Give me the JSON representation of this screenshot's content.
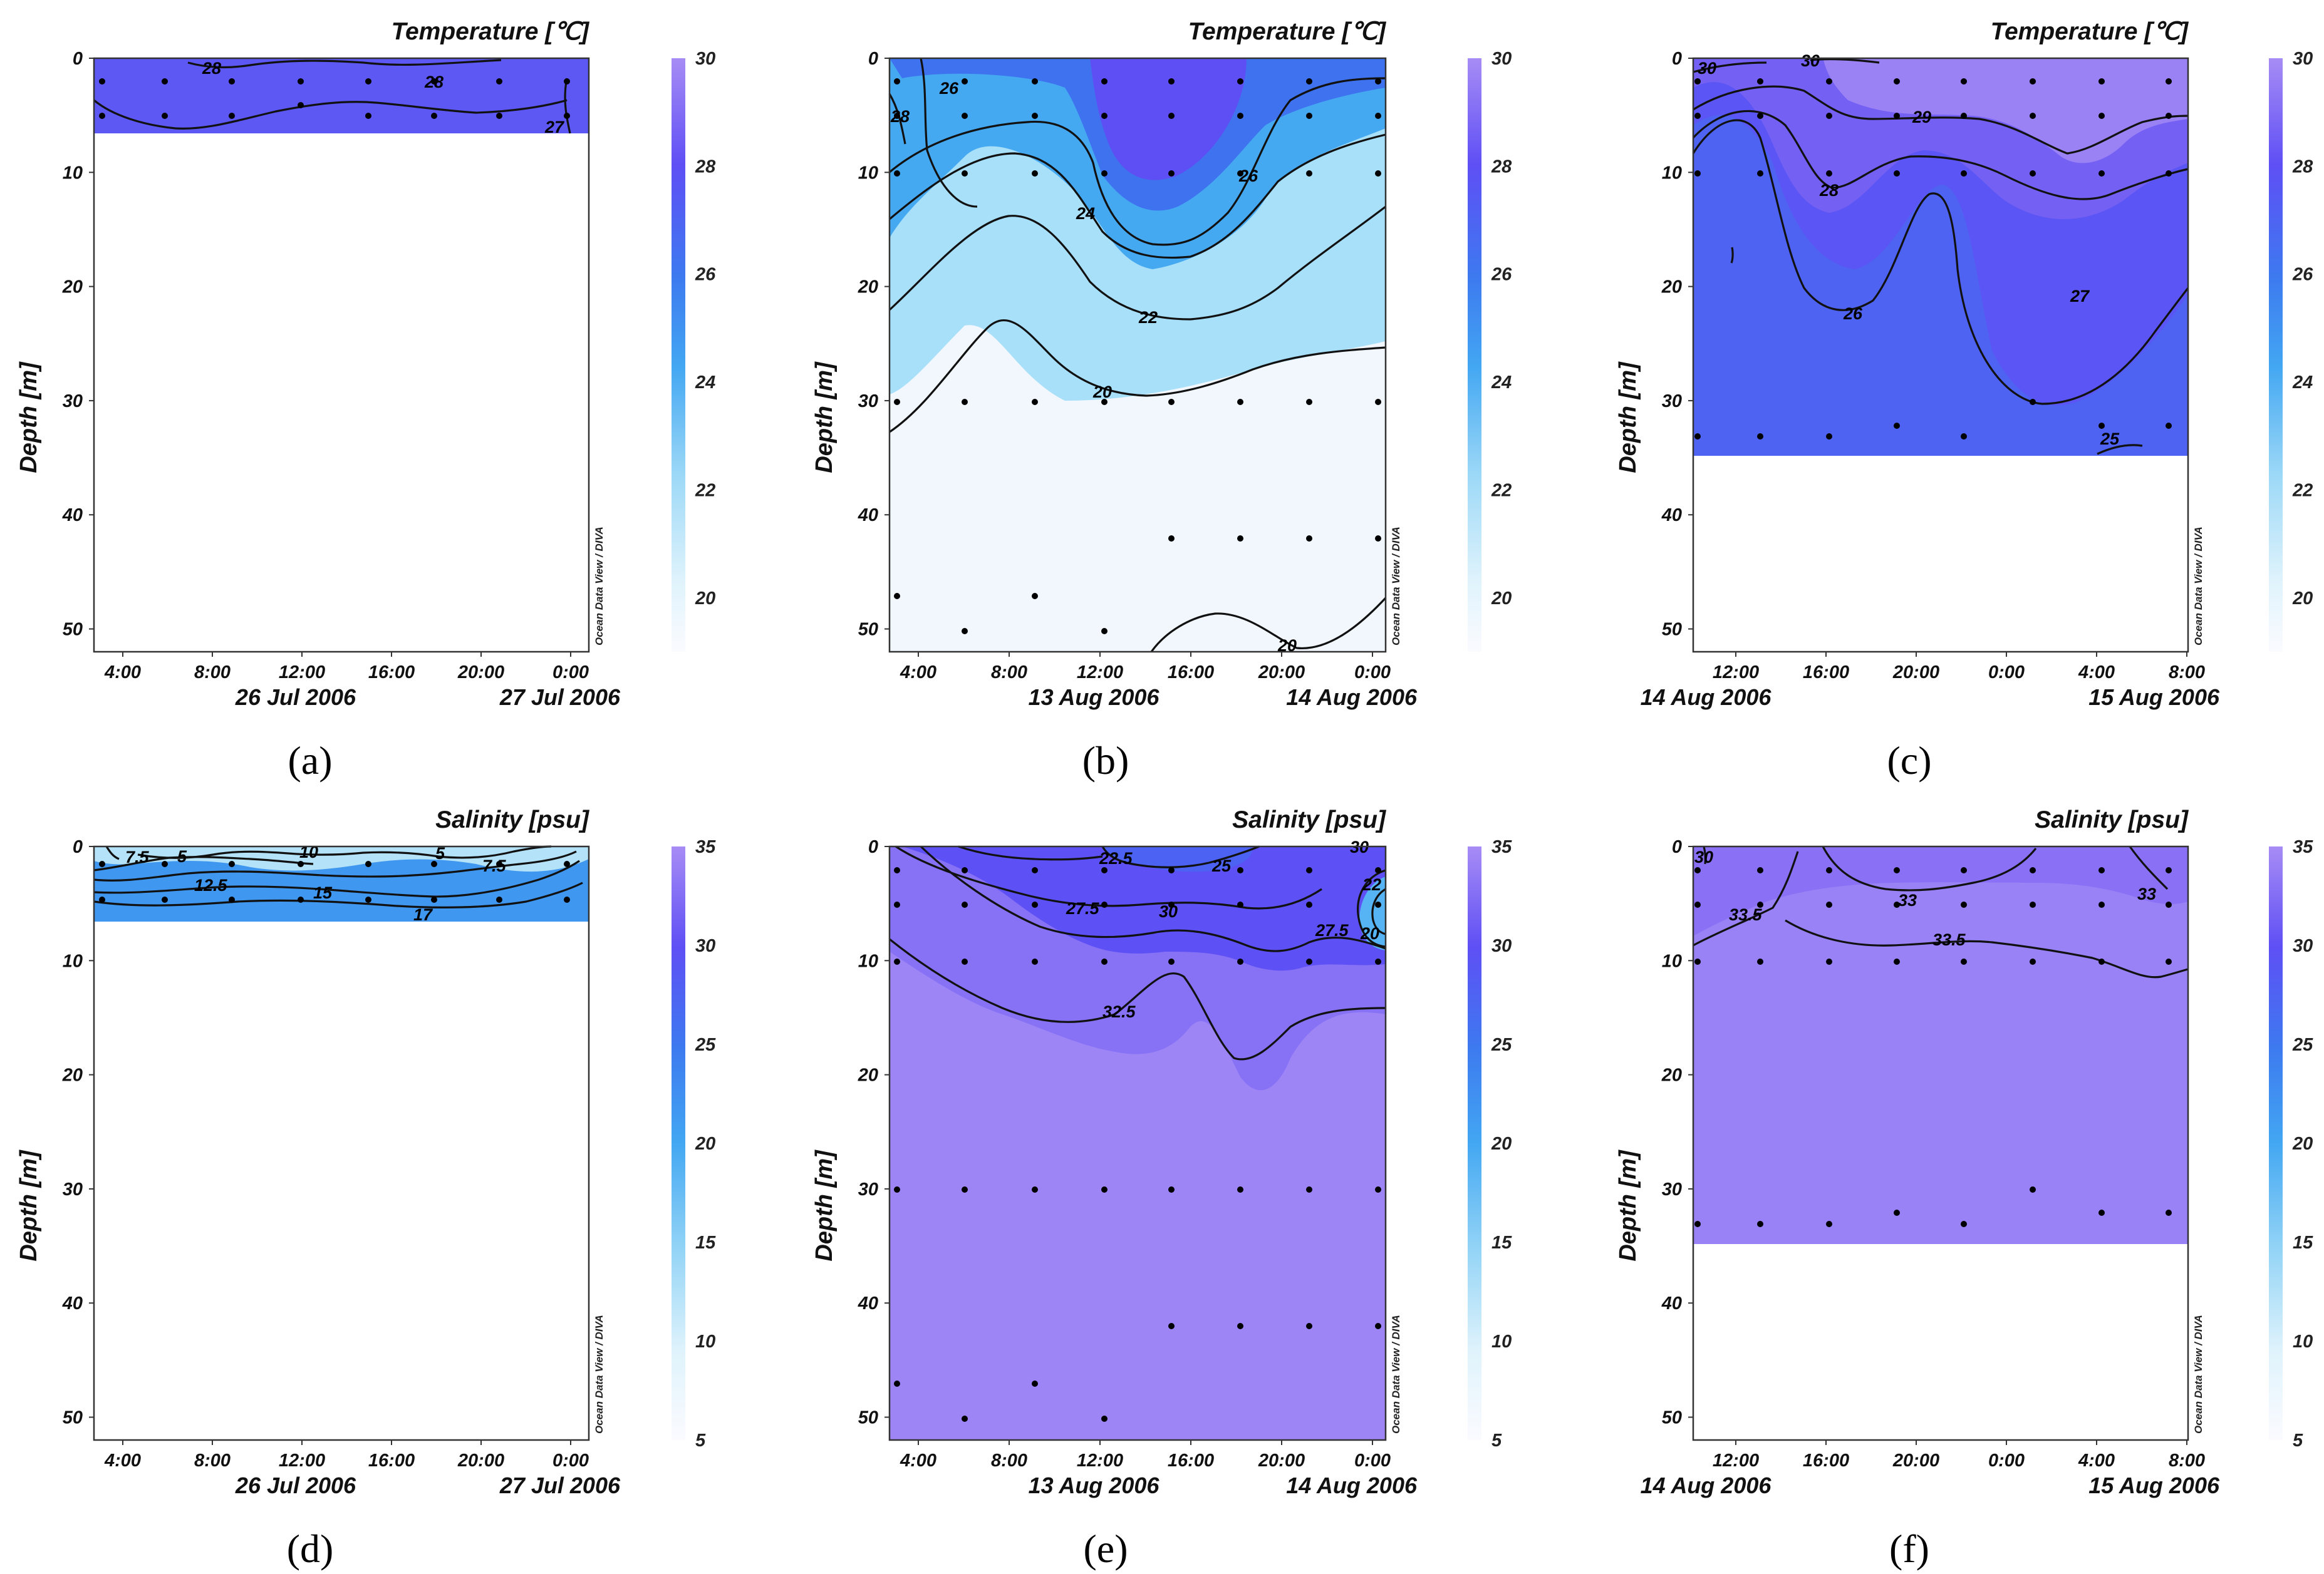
{
  "colors": {
    "scale_low": "#fbfbff",
    "scale_mid1": "#c8ebfb",
    "scale_mid2": "#43a7f2",
    "scale_mid3": "#3d7af0",
    "scale_mid4": "#5e4ff5",
    "scale_high": "#a78cf5",
    "contour": "#111111",
    "sample_dot": "#000000"
  },
  "credit": "Ocean Data View / DIVA",
  "chart_data": [
    {
      "type": "heatmap",
      "panel": "(a)",
      "title": "Temperature [℃]",
      "ylabel": "Depth [m]",
      "ylim": [
        52,
        0
      ],
      "yticks": [
        "0",
        "10",
        "20",
        "30",
        "40",
        "50"
      ],
      "xticks": [
        "4:00",
        "8:00",
        "12:00",
        "16:00",
        "20:00",
        "0:00"
      ],
      "date_labels": [
        "26 Jul 2006",
        "27 Jul 2006"
      ],
      "colorbar": {
        "min": 19,
        "max": 30,
        "ticks": [
          "20",
          "22",
          "24",
          "26",
          "28",
          "30"
        ]
      },
      "data_max_depth": 6.5,
      "contour_labels": [
        "28",
        "28",
        "27"
      ],
      "sample_depths": [
        2,
        5
      ]
    },
    {
      "type": "heatmap",
      "panel": "(b)",
      "title": "Temperature [℃]",
      "ylabel": "Depth [m]",
      "ylim": [
        52,
        0
      ],
      "yticks": [
        "0",
        "10",
        "20",
        "30",
        "40",
        "50"
      ],
      "xticks": [
        "4:00",
        "8:00",
        "12:00",
        "16:00",
        "20:00",
        "0:00"
      ],
      "date_labels": [
        "13 Aug 2006",
        "14 Aug 2006"
      ],
      "colorbar": {
        "min": 19,
        "max": 30,
        "ticks": [
          "20",
          "22",
          "24",
          "26",
          "28",
          "30"
        ]
      },
      "data_max_depth": 52,
      "contour_labels": [
        "28",
        "26",
        "26",
        "24",
        "22",
        "20",
        "20"
      ],
      "sample_depths": [
        2,
        5,
        10,
        30,
        42,
        47,
        50
      ]
    },
    {
      "type": "heatmap",
      "panel": "(c)",
      "title": "Temperature [℃]",
      "ylabel": "Depth [m]",
      "ylim": [
        52,
        0
      ],
      "yticks": [
        "0",
        "10",
        "20",
        "30",
        "40",
        "50"
      ],
      "xticks": [
        "12:00",
        "16:00",
        "20:00",
        "0:00",
        "4:00",
        "8:00"
      ],
      "date_labels": [
        "14 Aug 2006",
        "15 Aug 2006"
      ],
      "colorbar": {
        "min": 19,
        "max": 30,
        "ticks": [
          "20",
          "22",
          "24",
          "26",
          "28",
          "30"
        ]
      },
      "data_max_depth": 35,
      "contour_labels": [
        "30",
        "30",
        "29",
        "28",
        "26",
        "27",
        "25"
      ],
      "sample_depths": [
        2,
        5,
        10,
        32,
        33
      ]
    },
    {
      "type": "heatmap",
      "panel": "(d)",
      "title": "Salinity [psu]",
      "ylabel": "Depth [m]",
      "ylim": [
        52,
        0
      ],
      "yticks": [
        "0",
        "10",
        "20",
        "30",
        "40",
        "50"
      ],
      "xticks": [
        "4:00",
        "8:00",
        "12:00",
        "16:00",
        "20:00",
        "0:00"
      ],
      "date_labels": [
        "26 Jul 2006",
        "27 Jul 2006"
      ],
      "colorbar": {
        "min": 5,
        "max": 35,
        "ticks": [
          "5",
          "10",
          "15",
          "20",
          "25",
          "30",
          "35"
        ]
      },
      "data_max_depth": 6.5,
      "contour_labels": [
        "7.5",
        "5",
        "10",
        "5",
        "7.5",
        "12.5",
        "15",
        "17"
      ],
      "sample_depths": [
        2,
        5
      ]
    },
    {
      "type": "heatmap",
      "panel": "(e)",
      "title": "Salinity [psu]",
      "ylabel": "Depth [m]",
      "ylim": [
        52,
        0
      ],
      "yticks": [
        "0",
        "10",
        "20",
        "30",
        "40",
        "50"
      ],
      "xticks": [
        "4:00",
        "8:00",
        "12:00",
        "16:00",
        "20:00",
        "0:00"
      ],
      "date_labels": [
        "13 Aug 2006",
        "14 Aug 2006"
      ],
      "colorbar": {
        "min": 5,
        "max": 35,
        "ticks": [
          "5",
          "10",
          "15",
          "20",
          "25",
          "30",
          "35"
        ]
      },
      "data_max_depth": 52,
      "contour_labels": [
        "22.5",
        "25",
        "30",
        "27.5",
        "30",
        "32.5",
        "27.5",
        "22",
        "20"
      ],
      "sample_depths": [
        2,
        5,
        10,
        30,
        42,
        47,
        50
      ]
    },
    {
      "type": "heatmap",
      "panel": "(f)",
      "title": "Salinity [psu]",
      "ylabel": "Depth [m]",
      "ylim": [
        52,
        0
      ],
      "yticks": [
        "0",
        "10",
        "20",
        "30",
        "40",
        "50"
      ],
      "xticks": [
        "12:00",
        "16:00",
        "20:00",
        "0:00",
        "4:00",
        "8:00"
      ],
      "date_labels": [
        "14 Aug 2006",
        "15 Aug 2006"
      ],
      "colorbar": {
        "min": 5,
        "max": 35,
        "ticks": [
          "5",
          "10",
          "15",
          "20",
          "25",
          "30",
          "35"
        ]
      },
      "data_max_depth": 35,
      "contour_labels": [
        "30",
        "33.5",
        "33",
        "33",
        "33.5"
      ],
      "sample_depths": [
        2,
        5,
        10,
        32,
        33
      ]
    }
  ]
}
